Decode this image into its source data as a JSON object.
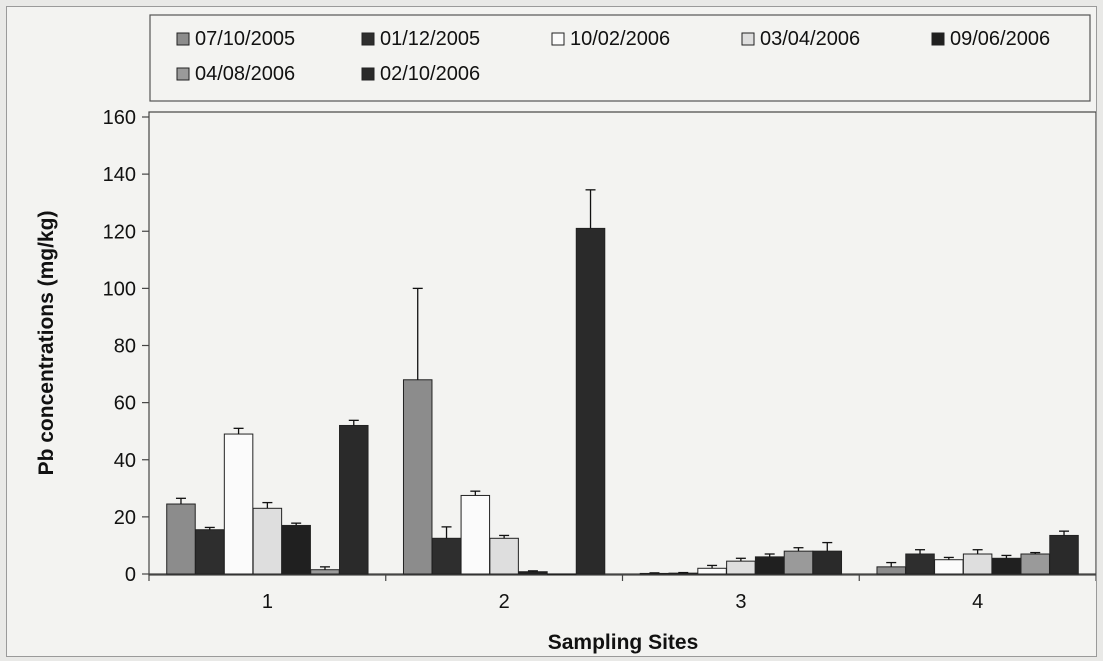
{
  "chart_data": {
    "type": "bar",
    "xlabel": "Sampling Sites",
    "ylabel": "Pb concentrations (mg/kg)",
    "ylim": [
      0,
      160
    ],
    "yticks": [
      0,
      20,
      40,
      60,
      80,
      100,
      120,
      140,
      160
    ],
    "categories": [
      "1",
      "2",
      "3",
      "4"
    ],
    "grid": false,
    "legend_position": "top",
    "series": [
      {
        "name": "07/10/2005",
        "color": "#8c8c8c",
        "values": [
          24.5,
          68,
          0.2,
          2.5
        ],
        "errors": [
          2,
          32,
          0.2,
          1.5
        ]
      },
      {
        "name": "01/12/2005",
        "color": "#2e2e2e",
        "values": [
          15.5,
          12.5,
          0.3,
          7
        ],
        "errors": [
          0.8,
          4,
          0.2,
          1.5
        ]
      },
      {
        "name": "10/02/2006",
        "color": "#fbfbfb",
        "values": [
          49,
          27.5,
          2,
          5
        ],
        "errors": [
          2,
          1.5,
          1,
          0.8
        ]
      },
      {
        "name": "03/04/2006",
        "color": "#dedede",
        "values": [
          23,
          12.5,
          4.5,
          7
        ],
        "errors": [
          2,
          1,
          1,
          1.5
        ]
      },
      {
        "name": "09/06/2006",
        "color": "#202020",
        "values": [
          17,
          0.8,
          6,
          5.5
        ],
        "errors": [
          0.8,
          0.3,
          1,
          1
        ]
      },
      {
        "name": "04/08/2006",
        "color": "#9a9a9a",
        "values": [
          1.5,
          0,
          8,
          7
        ],
        "errors": [
          1,
          0,
          1.2,
          0.5
        ]
      },
      {
        "name": "02/10/2006",
        "color": "#2a2a2a",
        "values": [
          52,
          121,
          8,
          13.5
        ],
        "errors": [
          1.8,
          13.5,
          3,
          1.5
        ]
      }
    ]
  }
}
